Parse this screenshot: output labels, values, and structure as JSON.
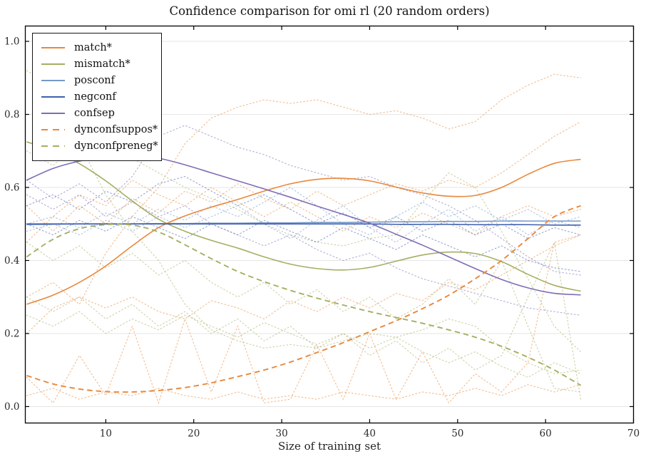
{
  "chart_data": {
    "type": "line",
    "title": "Confidence comparison for omi rl (20 random orders)",
    "xlabel": "Size of training set",
    "ylabel": "",
    "xlim": [
      0.85,
      70
    ],
    "ylim": [
      -0.045,
      1.042
    ],
    "xticks": [
      10,
      20,
      30,
      40,
      50,
      60,
      70
    ],
    "xtick_labels": [
      "10",
      "20",
      "30",
      "40",
      "50",
      "60",
      "70"
    ],
    "yticks": [
      0.0,
      0.2,
      0.4,
      0.6,
      0.8,
      1.0
    ],
    "ytick_labels": [
      "0.0",
      "0.2",
      "0.4",
      "0.6",
      "0.8",
      "1.0"
    ],
    "grid": "horizontal",
    "legend_position": "upper-left",
    "x": [
      1,
      4,
      7,
      10,
      13,
      16,
      19,
      22,
      25,
      28,
      31,
      34,
      37,
      40,
      43,
      46,
      49,
      52,
      55,
      58,
      61,
      64
    ],
    "series": [
      {
        "name": "match*",
        "style": "solid",
        "color": "#e8883c",
        "values": [
          0.28,
          0.305,
          0.34,
          0.385,
          0.44,
          0.49,
          0.522,
          0.546,
          0.567,
          0.59,
          0.61,
          0.622,
          0.625,
          0.618,
          0.601,
          0.585,
          0.576,
          0.578,
          0.6,
          0.636,
          0.666,
          0.677
        ]
      },
      {
        "name": "mismatch*",
        "style": "solid",
        "color": "#a6ae62",
        "values": [
          0.725,
          0.7,
          0.665,
          0.618,
          0.563,
          0.513,
          0.48,
          0.455,
          0.434,
          0.41,
          0.39,
          0.378,
          0.374,
          0.381,
          0.398,
          0.415,
          0.423,
          0.419,
          0.397,
          0.362,
          0.332,
          0.316
        ]
      },
      {
        "name": "posconf",
        "style": "solid",
        "color": "#7598cb",
        "values": [
          0.498,
          0.499,
          0.5,
          0.5,
          0.5,
          0.501,
          0.501,
          0.502,
          0.502,
          0.503,
          0.503,
          0.504,
          0.504,
          0.505,
          0.506,
          0.506,
          0.507,
          0.507,
          0.508,
          0.508,
          0.508,
          0.508
        ]
      },
      {
        "name": "negconf",
        "style": "solid",
        "color": "#4060ae",
        "values": [
          0.5,
          0.5,
          0.5,
          0.5,
          0.5,
          0.5,
          0.5,
          0.5,
          0.5,
          0.5,
          0.5,
          0.5,
          0.5,
          0.5,
          0.499,
          0.499,
          0.499,
          0.498,
          0.498,
          0.498,
          0.497,
          0.497
        ]
      },
      {
        "name": "confsep",
        "style": "solid",
        "color": "#7f6db5",
        "values": [
          0.62,
          0.652,
          0.672,
          0.684,
          0.688,
          0.68,
          0.662,
          0.64,
          0.618,
          0.596,
          0.573,
          0.549,
          0.526,
          0.502,
          0.472,
          0.442,
          0.41,
          0.378,
          0.348,
          0.325,
          0.31,
          0.306
        ]
      },
      {
        "name": "dynconfsuppos*",
        "style": "dashed",
        "color": "#e8883c",
        "values": [
          0.085,
          0.062,
          0.048,
          0.041,
          0.04,
          0.044,
          0.052,
          0.065,
          0.082,
          0.1,
          0.122,
          0.148,
          0.175,
          0.205,
          0.235,
          0.268,
          0.305,
          0.35,
          0.4,
          0.46,
          0.52,
          0.55
        ]
      },
      {
        "name": "dynconfpreneg*",
        "style": "dashed",
        "color": "#a6ae62",
        "values": [
          0.41,
          0.458,
          0.487,
          0.498,
          0.497,
          0.478,
          0.443,
          0.405,
          0.37,
          0.342,
          0.318,
          0.297,
          0.278,
          0.26,
          0.244,
          0.228,
          0.21,
          0.19,
          0.165,
          0.135,
          0.1,
          0.058
        ]
      }
    ],
    "individual_runs": [
      {
        "measure": "match",
        "color": "#e8883c",
        "values": [
          0.3,
          0.34,
          0.28,
          0.42,
          0.52,
          0.6,
          0.72,
          0.79,
          0.82,
          0.84,
          0.83,
          0.84,
          0.82,
          0.8,
          0.81,
          0.79,
          0.76,
          0.78,
          0.84,
          0.88,
          0.91,
          0.9
        ]
      },
      {
        "measure": "match",
        "color": "#e8883c",
        "values": [
          0.55,
          0.48,
          0.55,
          0.5,
          0.57,
          0.53,
          0.59,
          0.56,
          0.61,
          0.57,
          0.54,
          0.59,
          0.55,
          0.58,
          0.61,
          0.59,
          0.62,
          0.6,
          0.64,
          0.69,
          0.74,
          0.78
        ]
      },
      {
        "measure": "match",
        "color": "#e8883c",
        "values": [
          0.08,
          0.01,
          0.14,
          0.03,
          0.22,
          0.01,
          0.24,
          0.04,
          0.22,
          0.01,
          0.02,
          0.17,
          0.02,
          0.2,
          0.02,
          0.15,
          0.01,
          0.09,
          0.04,
          0.12,
          0.45,
          0.47
        ]
      },
      {
        "measure": "match",
        "color": "#e8883c",
        "values": [
          0.2,
          0.27,
          0.3,
          0.27,
          0.3,
          0.26,
          0.24,
          0.29,
          0.27,
          0.24,
          0.29,
          0.26,
          0.3,
          0.27,
          0.31,
          0.29,
          0.34,
          0.32,
          0.36,
          0.4,
          0.44,
          0.47
        ]
      },
      {
        "measure": "match",
        "color": "#e8883c",
        "values": [
          0.03,
          0.05,
          0.02,
          0.04,
          0.03,
          0.05,
          0.03,
          0.02,
          0.04,
          0.02,
          0.03,
          0.02,
          0.04,
          0.03,
          0.02,
          0.04,
          0.03,
          0.05,
          0.03,
          0.06,
          0.04,
          0.06
        ]
      },
      {
        "measure": "match",
        "color": "#e8883c",
        "values": [
          0.45,
          0.52,
          0.58,
          0.55,
          0.62,
          0.58,
          0.55,
          0.6,
          0.56,
          0.52,
          0.56,
          0.52,
          0.48,
          0.52,
          0.49,
          0.53,
          0.5,
          0.47,
          0.52,
          0.55,
          0.52,
          0.54
        ]
      },
      {
        "measure": "mismatch",
        "color": "#a6ae62",
        "values": [
          0.7,
          0.66,
          0.72,
          0.58,
          0.48,
          0.4,
          0.28,
          0.21,
          0.18,
          0.16,
          0.17,
          0.16,
          0.18,
          0.2,
          0.19,
          0.21,
          0.24,
          0.22,
          0.16,
          0.12,
          0.09,
          0.1
        ]
      },
      {
        "measure": "mismatch",
        "color": "#a6ae62",
        "values": [
          0.92,
          0.88,
          0.82,
          0.75,
          0.68,
          0.64,
          0.6,
          0.57,
          0.54,
          0.5,
          0.47,
          0.45,
          0.44,
          0.46,
          0.47,
          0.56,
          0.64,
          0.6,
          0.48,
          0.35,
          0.22,
          0.15
        ]
      },
      {
        "measure": "mismatch",
        "color": "#a6ae62",
        "values": [
          0.25,
          0.22,
          0.26,
          0.2,
          0.24,
          0.21,
          0.25,
          0.22,
          0.19,
          0.23,
          0.2,
          0.17,
          0.2,
          0.16,
          0.19,
          0.15,
          0.12,
          0.15,
          0.11,
          0.08,
          0.12,
          0.09
        ]
      },
      {
        "measure": "mismatch",
        "color": "#a6ae62",
        "values": [
          0.45,
          0.4,
          0.44,
          0.38,
          0.42,
          0.36,
          0.4,
          0.34,
          0.3,
          0.34,
          0.28,
          0.32,
          0.26,
          0.3,
          0.24,
          0.28,
          0.35,
          0.28,
          0.4,
          0.22,
          0.05,
          0.04
        ]
      },
      {
        "measure": "mismatch",
        "color": "#a6ae62",
        "values": [
          0.3,
          0.26,
          0.3,
          0.24,
          0.28,
          0.22,
          0.26,
          0.2,
          0.24,
          0.18,
          0.22,
          0.16,
          0.2,
          0.14,
          0.18,
          0.12,
          0.16,
          0.1,
          0.14,
          0.3,
          0.45,
          0.02
        ]
      },
      {
        "measure": "posconf",
        "color": "#7598cb",
        "values": [
          0.5,
          0.52,
          0.49,
          0.53,
          0.5,
          0.54,
          0.51,
          0.55,
          0.52,
          0.56,
          0.6,
          0.55,
          0.5,
          0.47,
          0.52,
          0.56,
          0.52,
          0.55,
          0.51,
          0.54,
          0.5,
          0.52
        ]
      },
      {
        "measure": "posconf",
        "color": "#7598cb",
        "values": [
          0.48,
          0.5,
          0.47,
          0.51,
          0.48,
          0.52,
          0.49,
          0.52,
          0.55,
          0.5,
          0.46,
          0.51,
          0.55,
          0.49,
          0.45,
          0.5,
          0.54,
          0.48,
          0.52,
          0.47,
          0.51,
          0.49
        ]
      },
      {
        "measure": "negconf",
        "color": "#4060ae",
        "values": [
          0.55,
          0.58,
          0.54,
          0.59,
          0.56,
          0.61,
          0.63,
          0.59,
          0.55,
          0.58,
          0.54,
          0.5,
          0.53,
          0.49,
          0.52,
          0.48,
          0.51,
          0.47,
          0.5,
          0.46,
          0.49,
          0.47
        ]
      },
      {
        "measure": "negconf",
        "color": "#4060ae",
        "values": [
          0.5,
          0.47,
          0.51,
          0.48,
          0.52,
          0.49,
          0.46,
          0.5,
          0.47,
          0.51,
          0.48,
          0.45,
          0.49,
          0.46,
          0.43,
          0.47,
          0.44,
          0.41,
          0.44,
          0.4,
          0.38,
          0.37
        ]
      },
      {
        "measure": "confsep",
        "color": "#7f6db5",
        "values": [
          0.62,
          0.57,
          0.61,
          0.56,
          0.63,
          0.74,
          0.77,
          0.74,
          0.71,
          0.69,
          0.66,
          0.64,
          0.62,
          0.63,
          0.6,
          0.58,
          0.55,
          0.51,
          0.46,
          0.41,
          0.37,
          0.36
        ]
      },
      {
        "measure": "confsep",
        "color": "#7f6db5",
        "values": [
          0.58,
          0.54,
          0.58,
          0.52,
          0.56,
          0.52,
          0.55,
          0.5,
          0.47,
          0.44,
          0.47,
          0.43,
          0.4,
          0.42,
          0.38,
          0.35,
          0.33,
          0.31,
          0.29,
          0.27,
          0.26,
          0.25
        ]
      }
    ],
    "legend": [
      {
        "label": "match*",
        "style": "solid",
        "color": "#e8883c"
      },
      {
        "label": "mismatch*",
        "style": "solid",
        "color": "#a6ae62"
      },
      {
        "label": "posconf",
        "style": "solid",
        "color": "#7598cb"
      },
      {
        "label": "negconf",
        "style": "solid",
        "color": "#4060ae"
      },
      {
        "label": "confsep",
        "style": "solid",
        "color": "#7f6db5"
      },
      {
        "label": "dynconfsuppos*",
        "style": "dashed",
        "color": "#e8883c"
      },
      {
        "label": "dynconfpreneg*",
        "style": "dashed",
        "color": "#a6ae62"
      }
    ],
    "style_colors": {
      "grid": "#e6e6e6",
      "spine": "#000000",
      "background": "#ffffff"
    }
  }
}
